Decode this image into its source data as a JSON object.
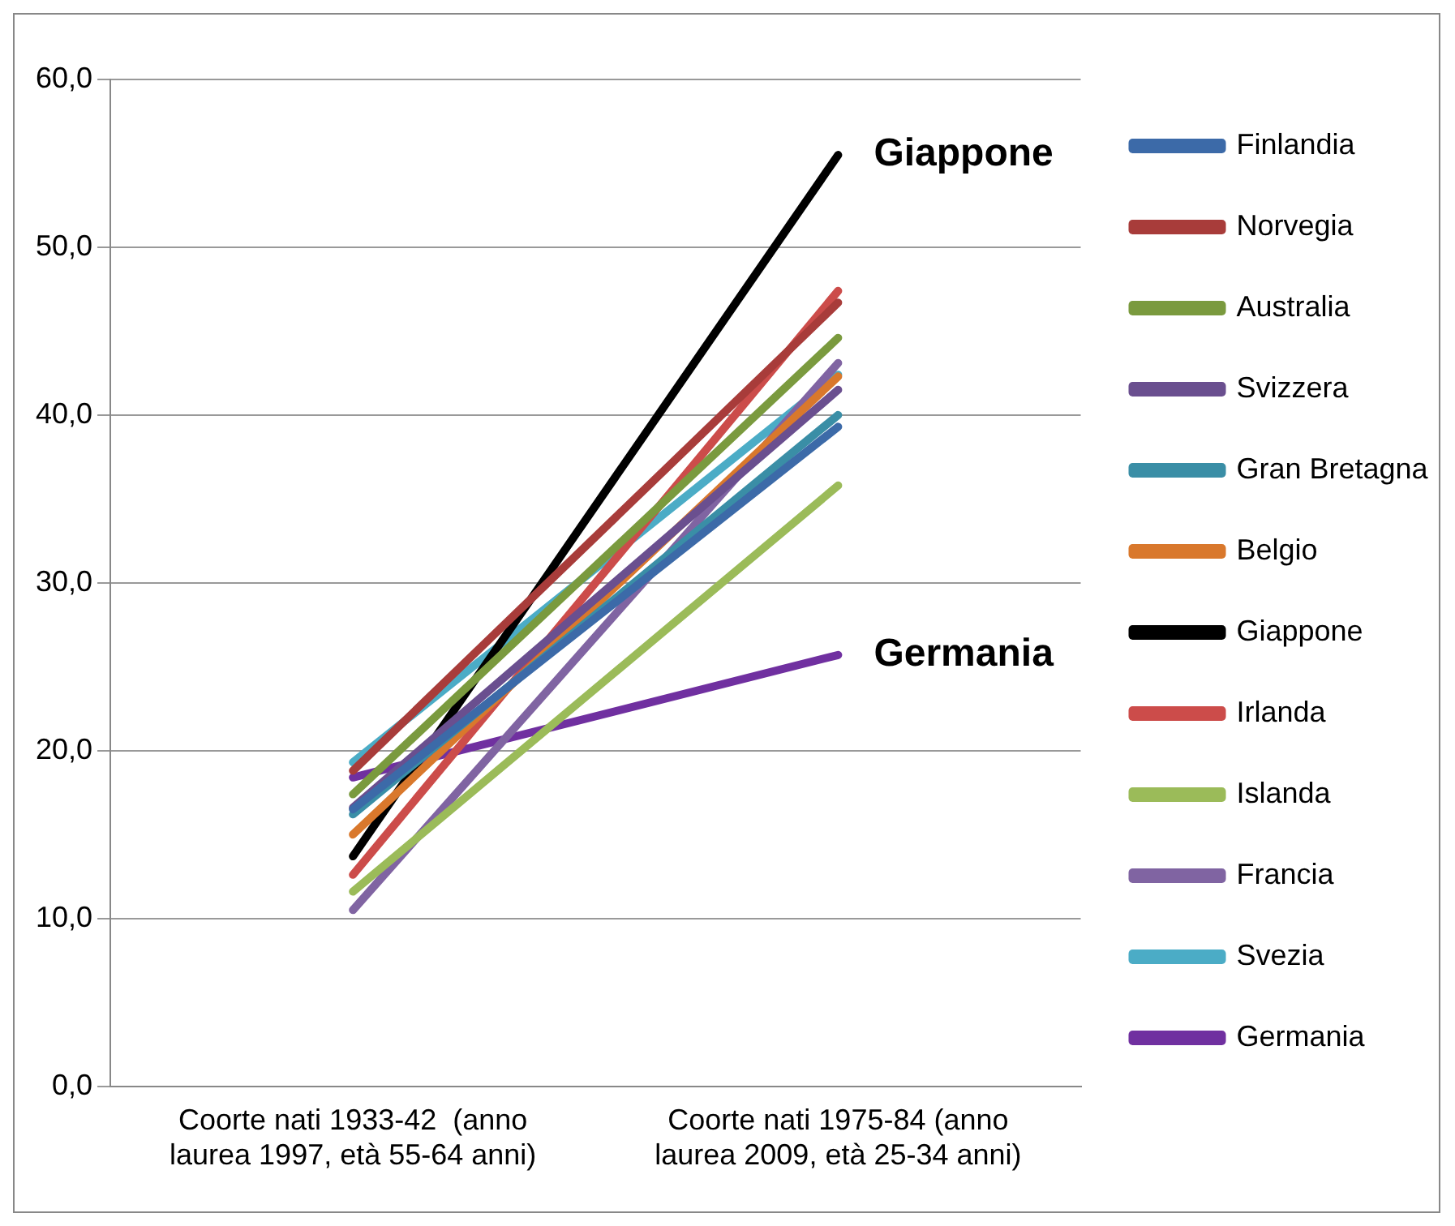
{
  "chart_data": {
    "type": "line",
    "categories": [
      "Coorte nati 1933-42  (anno laurea 1997, età 55-64 anni)",
      "Coorte nati 1975-84 (anno laurea 2009, età 25-34 anni)"
    ],
    "series": [
      {
        "name": "Finlandia",
        "color": "#3c6aa8",
        "values": [
          16.5,
          39.3
        ]
      },
      {
        "name": "Norvegia",
        "color": "#a83c3a",
        "values": [
          18.8,
          46.7
        ]
      },
      {
        "name": "Australia",
        "color": "#7a9a3e",
        "values": [
          17.4,
          44.6
        ]
      },
      {
        "name": "Svizzera",
        "color": "#6a4f8f",
        "values": [
          16.6,
          41.5
        ]
      },
      {
        "name": "Gran Bretagna",
        "color": "#3a8ea6",
        "values": [
          16.2,
          40.0
        ]
      },
      {
        "name": "Belgio",
        "color": "#d9782c",
        "values": [
          15.0,
          42.3
        ]
      },
      {
        "name": "Giappone",
        "color": "#000000",
        "values": [
          13.7,
          55.5
        ]
      },
      {
        "name": "Irlanda",
        "color": "#cc4c4a",
        "values": [
          12.6,
          47.4
        ]
      },
      {
        "name": "Islanda",
        "color": "#9bbb59",
        "values": [
          11.6,
          35.8
        ]
      },
      {
        "name": "Francia",
        "color": "#8064a2",
        "values": [
          10.5,
          43.1
        ]
      },
      {
        "name": "Svezia",
        "color": "#4bacc6",
        "values": [
          19.3,
          42.4
        ]
      },
      {
        "name": "Germania",
        "color": "#7030a0",
        "values": [
          18.4,
          25.7
        ]
      }
    ],
    "ylim": [
      0,
      60
    ],
    "yticks": [
      {
        "value": 0,
        "label": "0,0"
      },
      {
        "value": 10,
        "label": "10,0"
      },
      {
        "value": 20,
        "label": "20,0"
      },
      {
        "value": 30,
        "label": "30,0"
      },
      {
        "value": 40,
        "label": "40,0"
      },
      {
        "value": 50,
        "label": "50,0"
      },
      {
        "value": 60,
        "label": "60,0"
      }
    ],
    "grid": "y",
    "legend": "right",
    "marker": "none",
    "annotations": [
      {
        "text": "Giappone",
        "x": "Coorte nati 1975-84 (anno laurea 2009, età 25-34 anni)",
        "y": 55.5
      },
      {
        "text": "Germania",
        "x": "Coorte nati 1975-84 (anno laurea 2009, età 25-34 anni)",
        "y": 25.7
      }
    ]
  }
}
